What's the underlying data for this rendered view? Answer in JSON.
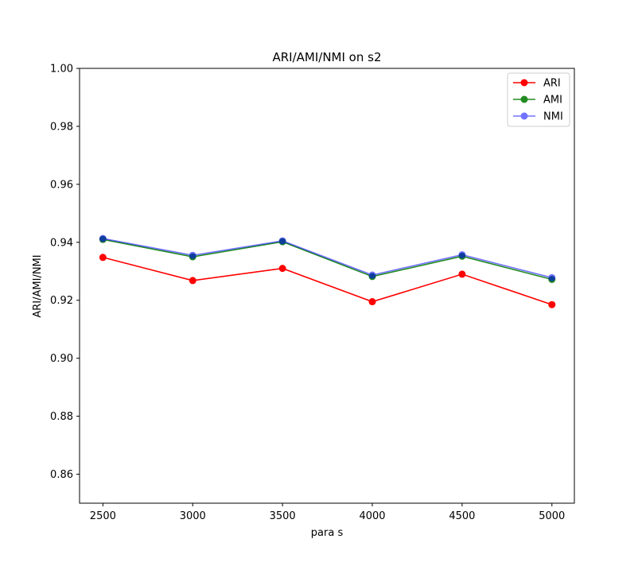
{
  "chart_data": {
    "type": "line",
    "title": "ARI/AMI/NMI on s2",
    "xlabel": "para s",
    "ylabel": "ARI/AMI/NMI",
    "x": [
      2500,
      3000,
      3500,
      4000,
      4500,
      5000
    ],
    "xlim": [
      2370,
      5125
    ],
    "ylim": [
      0.85,
      1.0
    ],
    "xticks": [
      "2500",
      "3000",
      "3500",
      "4000",
      "4500",
      "5000"
    ],
    "yticks": [
      "0.86",
      "0.88",
      "0.90",
      "0.92",
      "0.94",
      "0.96",
      "0.98",
      "1.00"
    ],
    "ytick_values": [
      0.86,
      0.88,
      0.9,
      0.92,
      0.94,
      0.96,
      0.98,
      1.0
    ],
    "grid": false,
    "legend_position": "top-right",
    "series": [
      {
        "name": "ARI",
        "color": "#ff0000",
        "opacity": 1.0,
        "values": [
          0.9348,
          0.9268,
          0.931,
          0.9195,
          0.929,
          0.9185
        ]
      },
      {
        "name": "AMI",
        "color": "#228b22",
        "opacity": 1.0,
        "values": [
          0.941,
          0.935,
          0.9402,
          0.9282,
          0.9352,
          0.9272
        ]
      },
      {
        "name": "NMI",
        "color": "#0000ff",
        "opacity": 0.55,
        "values": [
          0.9413,
          0.9355,
          0.9405,
          0.9287,
          0.9357,
          0.9278
        ]
      }
    ]
  }
}
